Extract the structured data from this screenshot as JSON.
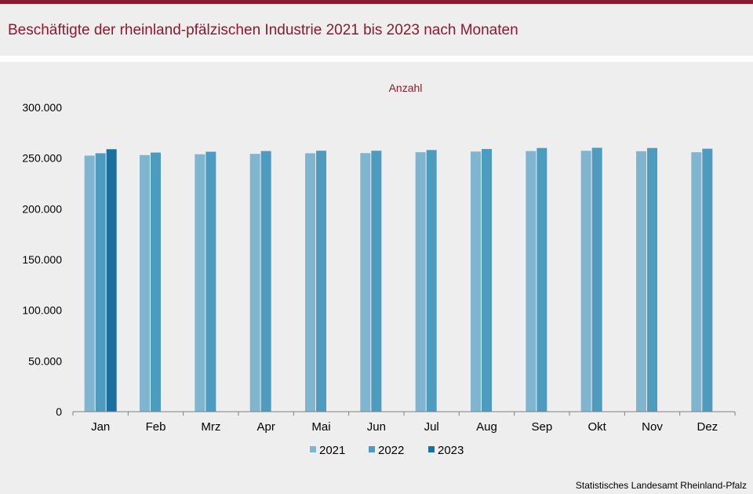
{
  "header": {
    "title": "Beschäftigte der rheinland-pfälzischen Industrie 2021 bis 2023 nach Monaten"
  },
  "footer": {
    "source": "Statistisches Landesamt  Rheinland-Pfalz"
  },
  "colors": {
    "accent": "#8b1a2e",
    "background": "#eeeeee",
    "series": [
      "#80b5d0",
      "#4d9cc0",
      "#1a6f9f"
    ]
  },
  "chart_data": {
    "type": "bar",
    "title": "",
    "ylabel": "Anzahl",
    "xlabel": "",
    "ylim": [
      0,
      300000
    ],
    "yticks": [
      0,
      50000,
      100000,
      150000,
      200000,
      250000,
      300000
    ],
    "ytick_labels": [
      "0",
      "50.000",
      "100.000",
      "150.000",
      "200.000",
      "250.000",
      "300.000"
    ],
    "grid": false,
    "legend": "bottom",
    "categories": [
      "Jan",
      "Feb",
      "Mrz",
      "Apr",
      "Mai",
      "Jun",
      "Jul",
      "Aug",
      "Sep",
      "Okt",
      "Nov",
      "Dez"
    ],
    "series": [
      {
        "name": "2021",
        "values": [
          252500,
          253000,
          253800,
          254200,
          254800,
          255000,
          255800,
          256500,
          257000,
          257300,
          256800,
          255800
        ]
      },
      {
        "name": "2022",
        "values": [
          254800,
          255500,
          256300,
          257000,
          257300,
          257300,
          258000,
          259000,
          260000,
          260200,
          260000,
          259300
        ]
      },
      {
        "name": "2023",
        "values": [
          258800,
          null,
          null,
          null,
          null,
          null,
          null,
          null,
          null,
          null,
          null,
          null
        ]
      }
    ]
  }
}
